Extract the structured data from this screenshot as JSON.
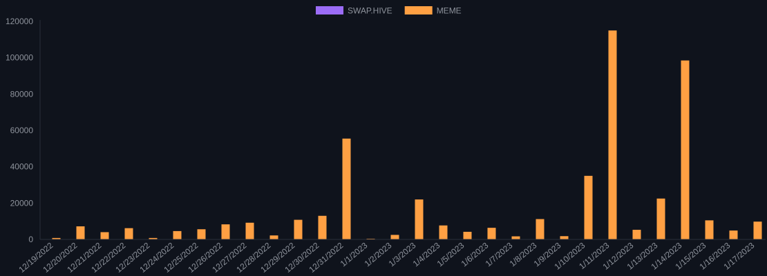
{
  "chart_data": {
    "type": "bar",
    "categories": [
      "12/19/2022",
      "12/20/2022",
      "12/21/2022",
      "12/22/2022",
      "12/23/2022",
      "12/24/2022",
      "12/25/2022",
      "12/26/2022",
      "12/27/2022",
      "12/28/2022",
      "12/29/2022",
      "12/30/2022",
      "12/31/2022",
      "1/1/2023",
      "1/2/2023",
      "1/3/2023",
      "1/4/2023",
      "1/5/2023",
      "1/6/2023",
      "1/7/2023",
      "1/8/2023",
      "1/9/2023",
      "1/10/2023",
      "1/11/2023",
      "1/12/2023",
      "1/13/2023",
      "1/14/2023",
      "1/15/2023",
      "1/16/2023",
      "1/17/2023"
    ],
    "series": [
      {
        "name": "SWAP.HIVE",
        "color": "#9b6cf7",
        "values": [
          0,
          0,
          0,
          0,
          0,
          0,
          0,
          0,
          0,
          0,
          0,
          0,
          0,
          0,
          0,
          0,
          0,
          0,
          0,
          0,
          0,
          0,
          0,
          0,
          0,
          0,
          0,
          0,
          0,
          0
        ]
      },
      {
        "name": "MEME",
        "color": "#ffa043",
        "values": [
          800,
          7200,
          4000,
          6200,
          800,
          4600,
          5600,
          8300,
          9200,
          2200,
          10800,
          13000,
          55500,
          400,
          2500,
          22000,
          7700,
          4200,
          6400,
          1700,
          11200,
          1800,
          35000,
          115000,
          5300,
          22500,
          98500,
          10500,
          4900,
          9800
        ]
      }
    ],
    "ylim": [
      0,
      120000
    ],
    "yticks": [
      0,
      20000,
      40000,
      60000,
      80000,
      100000,
      120000
    ],
    "grid": false,
    "legend": "top-center",
    "title": "",
    "xlabel": "",
    "ylabel": ""
  }
}
